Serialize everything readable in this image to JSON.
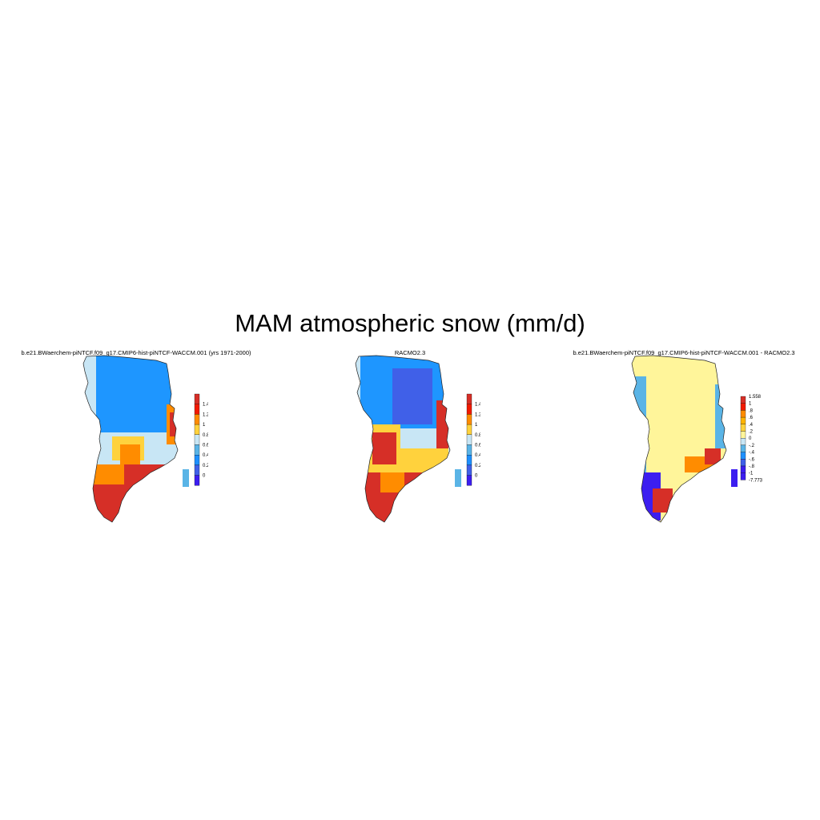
{
  "title": "MAM atmospheric snow (mm/d)",
  "panels": [
    {
      "title": "b.e21.BWaerchem-piNTCF.f09_g17.CMIP6-hist-piNTCF-WACCM.001 (yrs 1971-2000)",
      "colorbar_labels": [
        "1.4",
        "1.2",
        "1",
        "0.8",
        "0.6",
        "0.4",
        "0.2",
        "0"
      ],
      "colorbar_colors": [
        "#d62f27",
        "#f21a00",
        "#ff8c00",
        "#ffd23d",
        "#c8e6f5",
        "#5ab4e6",
        "#1e90ff",
        "#4060e8",
        "#3c1ef0"
      ],
      "map_colors": {
        "north": "#1e96ff",
        "ring": "#c8e6f5",
        "mid": "#ffd23d",
        "orange": "#ff8c00",
        "south": "#d62f27"
      }
    },
    {
      "title": "RACMO2.3",
      "colorbar_labels": [
        "1.4",
        "1.2",
        "1",
        "0.8",
        "0.6",
        "0.4",
        "0.2",
        "0"
      ],
      "colorbar_colors": [
        "#d62f27",
        "#f21a00",
        "#ff8c00",
        "#ffd23d",
        "#c8e6f5",
        "#5ab4e6",
        "#1e90ff",
        "#4060e8",
        "#3c1ef0"
      ],
      "map_colors": {
        "north": "#1e96ff",
        "core": "#4060e8",
        "ring": "#c8e6f5",
        "mid": "#ffd23d",
        "orange": "#ff8c00",
        "south": "#d62f27"
      }
    },
    {
      "title": "b.e21.BWaerchem-piNTCF.f09_g17.CMIP6-hist-piNTCF-WACCM.001 - RACMO2.3",
      "colorbar_labels": [
        "1.558",
        "1",
        ".8",
        ".6",
        ".4",
        ".2",
        "0",
        "-.2",
        "-.4",
        "-.6",
        "-.8",
        "-1",
        "-7.773"
      ],
      "colorbar_colors": [
        "#d62f27",
        "#f21a00",
        "#ff8c00",
        "#ffb400",
        "#ffd23d",
        "#fff59a",
        "#c8e6f5",
        "#5ab4e6",
        "#1e90ff",
        "#4060e8",
        "#3c1ef0",
        "#3c1ef0"
      ],
      "map_colors": {
        "interior": "#fff59a",
        "edge_blue": "#5ab4e6",
        "edge_dark": "#3c1ef0",
        "edge_red": "#d62f27",
        "edge_orange": "#ff8c00"
      }
    }
  ]
}
